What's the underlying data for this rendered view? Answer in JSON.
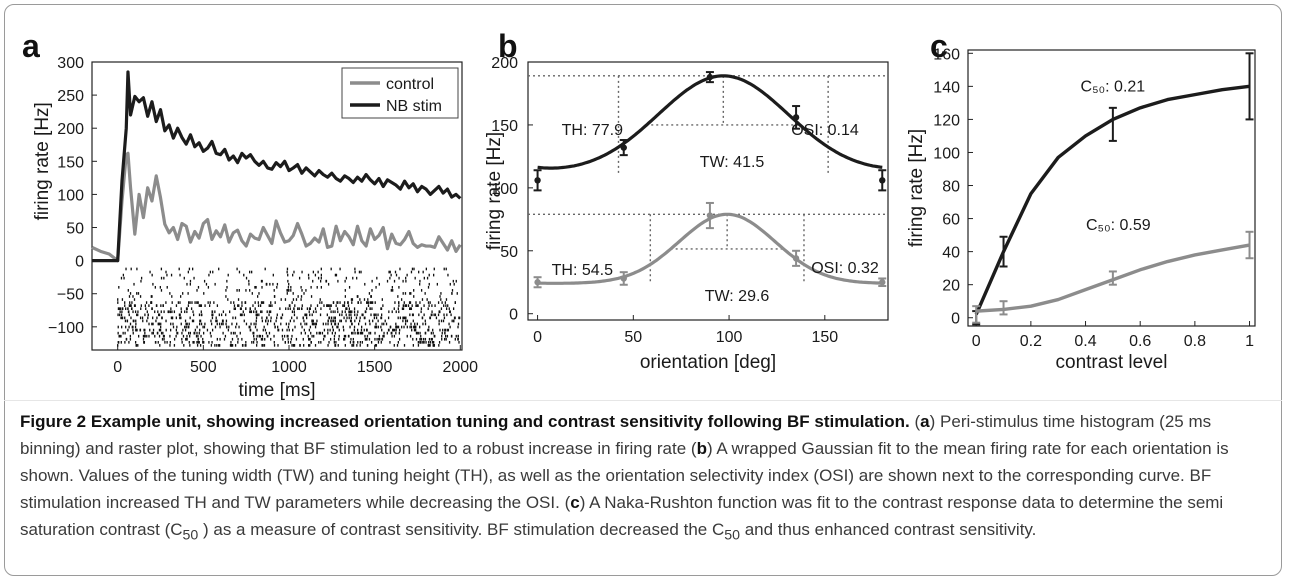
{
  "figure": {
    "panels": [
      "a",
      "b",
      "c"
    ],
    "caption": {
      "title": "Figure 2 Example unit, showing increased orientation tuning and contrast sensitivity following BF stimulation.",
      "a_label": "a",
      "a_text": " Peri-stimulus time histogram (25 ms binning) and raster plot, showing that BF stimulation led to a robust increase in firing rate (",
      "b_label": "b",
      "b_text": ") A wrapped Gaussian fit to the mean firing rate for each orientation is shown. Values of the tuning width (TW) and tuning height (TH), as well as the orientation selectivity index (OSI) are shown next to the corresponding curve. BF stimulation increased TH and TW parameters while decreasing the OSI. (",
      "c_label": "c",
      "c_text_1": ") A Naka-Rushton function was fit to the contrast response data to determine the semi saturation contrast (C",
      "c50_sub": "50",
      "c_text_2": " ) as a measure of contrast sensitivity. BF stimulation decreased the C",
      "c_text_3": " and thus enhanced contrast sensitivity."
    }
  },
  "colors": {
    "nb_stim": "#1c1c1c",
    "control": "#8c8c8c",
    "raster": "#111111"
  },
  "chart_data": [
    {
      "panel": "a",
      "type": "line",
      "xlabel": "time [ms]",
      "ylabel": "firing rate [Hz]",
      "xlim": [
        -150,
        2010
      ],
      "ylim": [
        -135,
        300
      ],
      "xticks": [
        0,
        500,
        1000,
        1500,
        2000
      ],
      "yticks": [
        -100,
        -50,
        0,
        50,
        100,
        150,
        200,
        250,
        300
      ],
      "legend_position": "top-right",
      "legend": [
        "control",
        "NB stim"
      ],
      "series": [
        {
          "name": "NB stim",
          "color_key": "nb_stim",
          "x": [
            -150,
            -100,
            -50,
            0,
            25,
            50,
            60,
            75,
            100,
            125,
            150,
            175,
            200,
            225,
            250,
            275,
            300,
            325,
            350,
            375,
            400,
            425,
            450,
            475,
            500,
            525,
            550,
            575,
            600,
            625,
            650,
            675,
            700,
            725,
            750,
            775,
            800,
            825,
            850,
            875,
            900,
            925,
            950,
            975,
            1000,
            1025,
            1050,
            1075,
            1100,
            1125,
            1150,
            1175,
            1200,
            1225,
            1250,
            1275,
            1300,
            1325,
            1350,
            1375,
            1400,
            1425,
            1450,
            1475,
            1500,
            1525,
            1550,
            1575,
            1600,
            1625,
            1650,
            1675,
            1700,
            1725,
            1750,
            1775,
            1800,
            1825,
            1850,
            1875,
            1900,
            1925,
            1950,
            1975,
            2000
          ],
          "values": [
            0,
            0,
            0,
            0,
            120,
            200,
            285,
            220,
            248,
            240,
            246,
            218,
            240,
            210,
            228,
            196,
            205,
            185,
            200,
            186,
            176,
            190,
            172,
            178,
            165,
            170,
            180,
            162,
            160,
            168,
            152,
            158,
            148,
            162,
            155,
            160,
            150,
            144,
            150,
            140,
            138,
            148,
            142,
            150,
            136,
            140,
            145,
            132,
            140,
            134,
            128,
            136,
            130,
            126,
            132,
            124,
            120,
            128,
            124,
            118,
            126,
            120,
            130,
            122,
            116,
            124,
            112,
            122,
            118,
            114,
            108,
            120,
            110,
            116,
            104,
            112,
            108,
            100,
            106,
            112,
            102,
            108,
            96,
            100,
            94
          ]
        },
        {
          "name": "control",
          "color_key": "control",
          "x": [
            -150,
            -100,
            -50,
            0,
            25,
            50,
            60,
            75,
            100,
            125,
            150,
            175,
            200,
            225,
            250,
            275,
            300,
            325,
            350,
            375,
            400,
            425,
            450,
            475,
            500,
            525,
            550,
            575,
            600,
            625,
            650,
            675,
            700,
            725,
            750,
            775,
            800,
            825,
            850,
            875,
            900,
            925,
            950,
            975,
            1000,
            1025,
            1050,
            1075,
            1100,
            1125,
            1150,
            1175,
            1200,
            1225,
            1250,
            1275,
            1300,
            1325,
            1350,
            1375,
            1400,
            1425,
            1450,
            1475,
            1500,
            1525,
            1550,
            1575,
            1600,
            1625,
            1650,
            1675,
            1700,
            1725,
            1750,
            1775,
            1800,
            1825,
            1850,
            1875,
            1900,
            1925,
            1950,
            1975,
            2000
          ],
          "values": [
            20,
            14,
            10,
            0,
            90,
            160,
            162,
            110,
            40,
            100,
            65,
            110,
            90,
            128,
            95,
            55,
            42,
            50,
            32,
            56,
            52,
            28,
            44,
            34,
            56,
            62,
            32,
            45,
            36,
            54,
            28,
            42,
            46,
            30,
            22,
            40,
            34,
            32,
            50,
            38,
            26,
            60,
            42,
            28,
            30,
            38,
            56,
            40,
            22,
            26,
            34,
            28,
            48,
            20,
            22,
            52,
            30,
            44,
            36,
            24,
            52,
            30,
            22,
            48,
            32,
            38,
            50,
            18,
            40,
            26,
            24,
            32,
            44,
            26,
            20,
            24,
            22,
            22,
            20,
            36,
            26,
            16,
            30,
            14,
            24
          ]
        }
      ],
      "raster": {
        "y_range": [
          -130,
          0
        ],
        "x_range": [
          0,
          2000
        ]
      }
    },
    {
      "panel": "b",
      "type": "line",
      "xlabel": "orientation [deg]",
      "ylabel": "firing rate [Hz]",
      "xlim": [
        -5,
        183
      ],
      "ylim": [
        -5,
        200
      ],
      "xticks": [
        0,
        50,
        100,
        150
      ],
      "yticks": [
        0,
        50,
        100,
        150,
        200
      ],
      "series": [
        {
          "name": "NB stim",
          "color_key": "nb_stim",
          "fit": {
            "baseline": 111,
            "amplitude": 78,
            "center": 97,
            "sigma": 34,
            "period": 180
          },
          "points": {
            "x": [
              0,
              45,
              90,
              135,
              180
            ],
            "y": [
              106,
              132,
              188,
              156,
              106
            ],
            "err": [
              8,
              6,
              4,
              9,
              8
            ]
          },
          "annotations": [
            "TH: 77.9",
            "TW: 41.5",
            "OSI: 0.14"
          ]
        },
        {
          "name": "control",
          "color_key": "control",
          "fit": {
            "baseline": 24,
            "amplitude": 55,
            "center": 99,
            "sigma": 25,
            "period": 180
          },
          "points": {
            "x": [
              0,
              45,
              90,
              135,
              180
            ],
            "y": [
              25,
              28,
              78,
              44,
              25
            ],
            "err": [
              4,
              5,
              10,
              6,
              3
            ]
          },
          "annotations": [
            "TH: 54.5",
            "TW: 29.6",
            "OSI: 0.32"
          ]
        }
      ]
    },
    {
      "panel": "c",
      "type": "line",
      "xlabel": "contrast level",
      "ylabel": "firing rate [Hz]",
      "xlim": [
        -0.03,
        1.02
      ],
      "ylim": [
        -5,
        162
      ],
      "xticks": [
        0,
        0.2,
        0.4,
        0.6,
        0.8,
        1
      ],
      "yticks": [
        0,
        20,
        40,
        60,
        80,
        100,
        120,
        140,
        160
      ],
      "series": [
        {
          "name": "NB stim",
          "color_key": "nb_stim",
          "curve": {
            "x": [
              0,
              0.1,
              0.2,
              0.3,
              0.4,
              0.5,
              0.6,
              0.7,
              0.8,
              0.9,
              1.0
            ],
            "y": [
              2,
              40,
              75,
              97,
              110,
              120,
              127,
              132,
              135,
              138,
              140
            ]
          },
          "points": {
            "x": [
              0,
              0.1,
              0.5,
              1.0
            ],
            "y": [
              0,
              40,
              117,
              140
            ],
            "err": [
              4,
              9,
              10,
              20
            ]
          },
          "label": "C50: 0.21"
        },
        {
          "name": "control",
          "color_key": "control",
          "curve": {
            "x": [
              0,
              0.1,
              0.2,
              0.3,
              0.4,
              0.5,
              0.6,
              0.7,
              0.8,
              0.9,
              1.0
            ],
            "y": [
              4,
              5,
              7,
              11,
              17,
              23,
              29,
              34,
              38,
              41,
              44
            ]
          },
          "points": {
            "x": [
              0,
              0.1,
              0.5,
              1.0
            ],
            "y": [
              2,
              6,
              24,
              44
            ],
            "err": [
              5,
              4,
              4,
              8
            ]
          },
          "label": "C50: 0.59"
        }
      ]
    }
  ]
}
